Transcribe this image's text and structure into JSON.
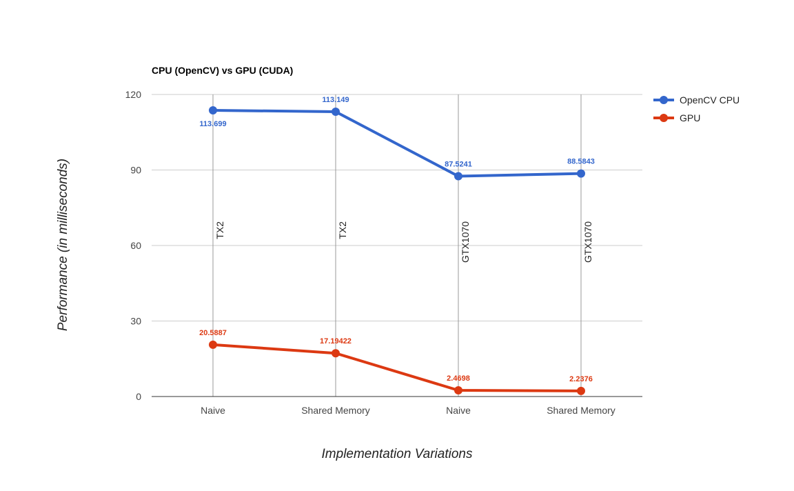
{
  "chart_data": {
    "type": "line",
    "title": "CPU (OpenCV) vs GPU (CUDA)",
    "xlabel": "Implementation Variations",
    "ylabel": "Performance (in milliseconds)",
    "categories": [
      "Naive",
      "Shared Memory",
      "Naive",
      "Shared Memory"
    ],
    "category_annotations": [
      "TX2",
      "TX2",
      "GTX1070",
      "GTX1070"
    ],
    "ylim": [
      0,
      120
    ],
    "yticks": [
      0,
      30,
      60,
      90,
      120
    ],
    "ytick_labels": [
      "0",
      "30",
      "60",
      "90",
      "120"
    ],
    "grid": true,
    "legend_position": "right",
    "series": [
      {
        "name": "OpenCV CPU",
        "color": "#3366cc",
        "values": [
          113.699,
          113.149,
          87.5241,
          88.5843
        ],
        "labels": [
          "113.699",
          "113.149",
          "87.5241",
          "88.5843"
        ],
        "label_side": [
          "below",
          "above",
          "above",
          "above"
        ]
      },
      {
        "name": "GPU",
        "color": "#dc3912",
        "values": [
          20.5887,
          17.19422,
          2.4698,
          2.2376
        ],
        "labels": [
          "20.5887",
          "17.19422",
          "2.4698",
          "2.2376"
        ],
        "label_side": [
          "above",
          "above",
          "above",
          "above"
        ]
      }
    ]
  }
}
